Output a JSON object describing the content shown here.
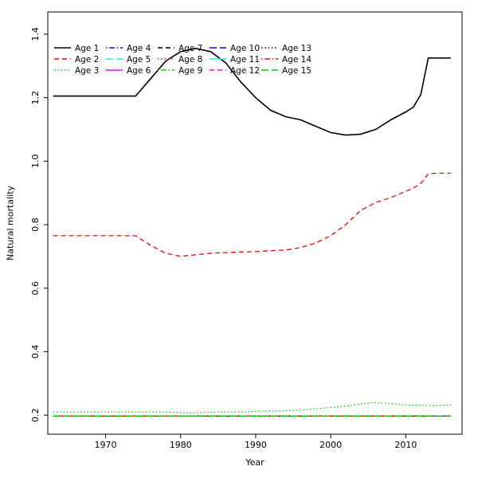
{
  "figure": {
    "background": "#FFFFFF",
    "axis_color": "#000000"
  },
  "chart_data": {
    "type": "line",
    "title": "",
    "xlabel": "Year",
    "ylabel": "Natural mortality",
    "xlim": [
      1962.3,
      2017.5
    ],
    "ylim": [
      0.14,
      1.47
    ],
    "grid": false,
    "xticks": [
      1970,
      1980,
      1990,
      2000,
      2010
    ],
    "xtick_labels": [
      "1970",
      "1980",
      "1990",
      "2000",
      "2010"
    ],
    "yticks": [
      0.2,
      0.4,
      0.6,
      0.8,
      1.0,
      1.2,
      1.4
    ],
    "ytick_labels": [
      "0.2",
      "0.4",
      "0.6",
      "0.8",
      "1.0",
      "1.2",
      "1.4"
    ],
    "x": [
      1963,
      1966,
      1969,
      1972,
      1974,
      1976,
      1978,
      1980,
      1982,
      1984,
      1986,
      1988,
      1990,
      1992,
      1994,
      1996,
      1998,
      2000,
      2002,
      2004,
      2006,
      2008,
      2010,
      2011,
      2012,
      2013,
      2014,
      2016
    ],
    "series": [
      {
        "name": "Age 1",
        "color": "#000000",
        "linetype": "solid",
        "values": [
          1.205,
          1.205,
          1.205,
          1.205,
          1.205,
          1.26,
          1.315,
          1.345,
          1.355,
          1.345,
          1.31,
          1.25,
          1.2,
          1.16,
          1.14,
          1.13,
          1.11,
          1.09,
          1.082,
          1.085,
          1.1,
          1.13,
          1.155,
          1.17,
          1.21,
          1.325,
          1.325,
          1.325
        ]
      },
      {
        "name": "Age 2",
        "color": "#FF0000",
        "linetype": "dashed",
        "values": [
          0.765,
          0.765,
          0.765,
          0.765,
          0.765,
          0.735,
          0.71,
          0.7,
          0.705,
          0.71,
          0.712,
          0.714,
          0.715,
          0.718,
          0.72,
          0.728,
          0.742,
          0.765,
          0.8,
          0.845,
          0.87,
          0.885,
          0.905,
          0.915,
          0.93,
          0.96,
          0.962,
          0.962
        ]
      },
      {
        "name": "Age 3",
        "color": "#00CD00",
        "linetype": "dotted",
        "values": [
          0.21,
          0.21,
          0.21,
          0.21,
          0.21,
          0.21,
          0.21,
          0.208,
          0.208,
          0.209,
          0.21,
          0.21,
          0.212,
          0.213,
          0.214,
          0.216,
          0.22,
          0.224,
          0.228,
          0.235,
          0.24,
          0.236,
          0.232,
          0.231,
          0.231,
          0.23,
          0.23,
          0.232
        ]
      },
      {
        "name": "Age 4",
        "color": "#0000FF",
        "linetype": "dotdash",
        "constant": 0.197
      },
      {
        "name": "Age 5",
        "color": "#00FFFF",
        "linetype": "longdash",
        "constant": 0.197
      },
      {
        "name": "Age 6",
        "color": "#FF00FF",
        "linetype": "solid",
        "constant": 0.197
      },
      {
        "name": "Age 7",
        "color": "#000000",
        "linetype": "dashed",
        "constant": 0.197
      },
      {
        "name": "Age 8",
        "color": "#FF0000",
        "linetype": "dotted",
        "constant": 0.197
      },
      {
        "name": "Age 9",
        "color": "#00CD00",
        "linetype": "dotdash",
        "constant": 0.197
      },
      {
        "name": "Age 10",
        "color": "#0000FF",
        "linetype": "longdash",
        "constant": 0.197
      },
      {
        "name": "Age 11",
        "color": "#00FFFF",
        "linetype": "solid",
        "constant": 0.197
      },
      {
        "name": "Age 12",
        "color": "#FF00FF",
        "linetype": "dashed",
        "constant": 0.197
      },
      {
        "name": "Age 13",
        "color": "#000000",
        "linetype": "dotted",
        "constant": 0.197
      },
      {
        "name": "Age 14",
        "color": "#FF0000",
        "linetype": "dotdash",
        "constant": 0.197
      },
      {
        "name": "Age 15",
        "color": "#00CD00",
        "linetype": "longdash",
        "constant": 0.197
      }
    ],
    "legend": {
      "position": "top-left",
      "columns": 5,
      "rows": 3,
      "fill_order": "column-major",
      "entries": [
        "Age 1",
        "Age 2",
        "Age 3",
        "Age 4",
        "Age 5",
        "Age 6",
        "Age 7",
        "Age 8",
        "Age 9",
        "Age 10",
        "Age 11",
        "Age 12",
        "Age 13",
        "Age 14",
        "Age 15"
      ]
    }
  }
}
